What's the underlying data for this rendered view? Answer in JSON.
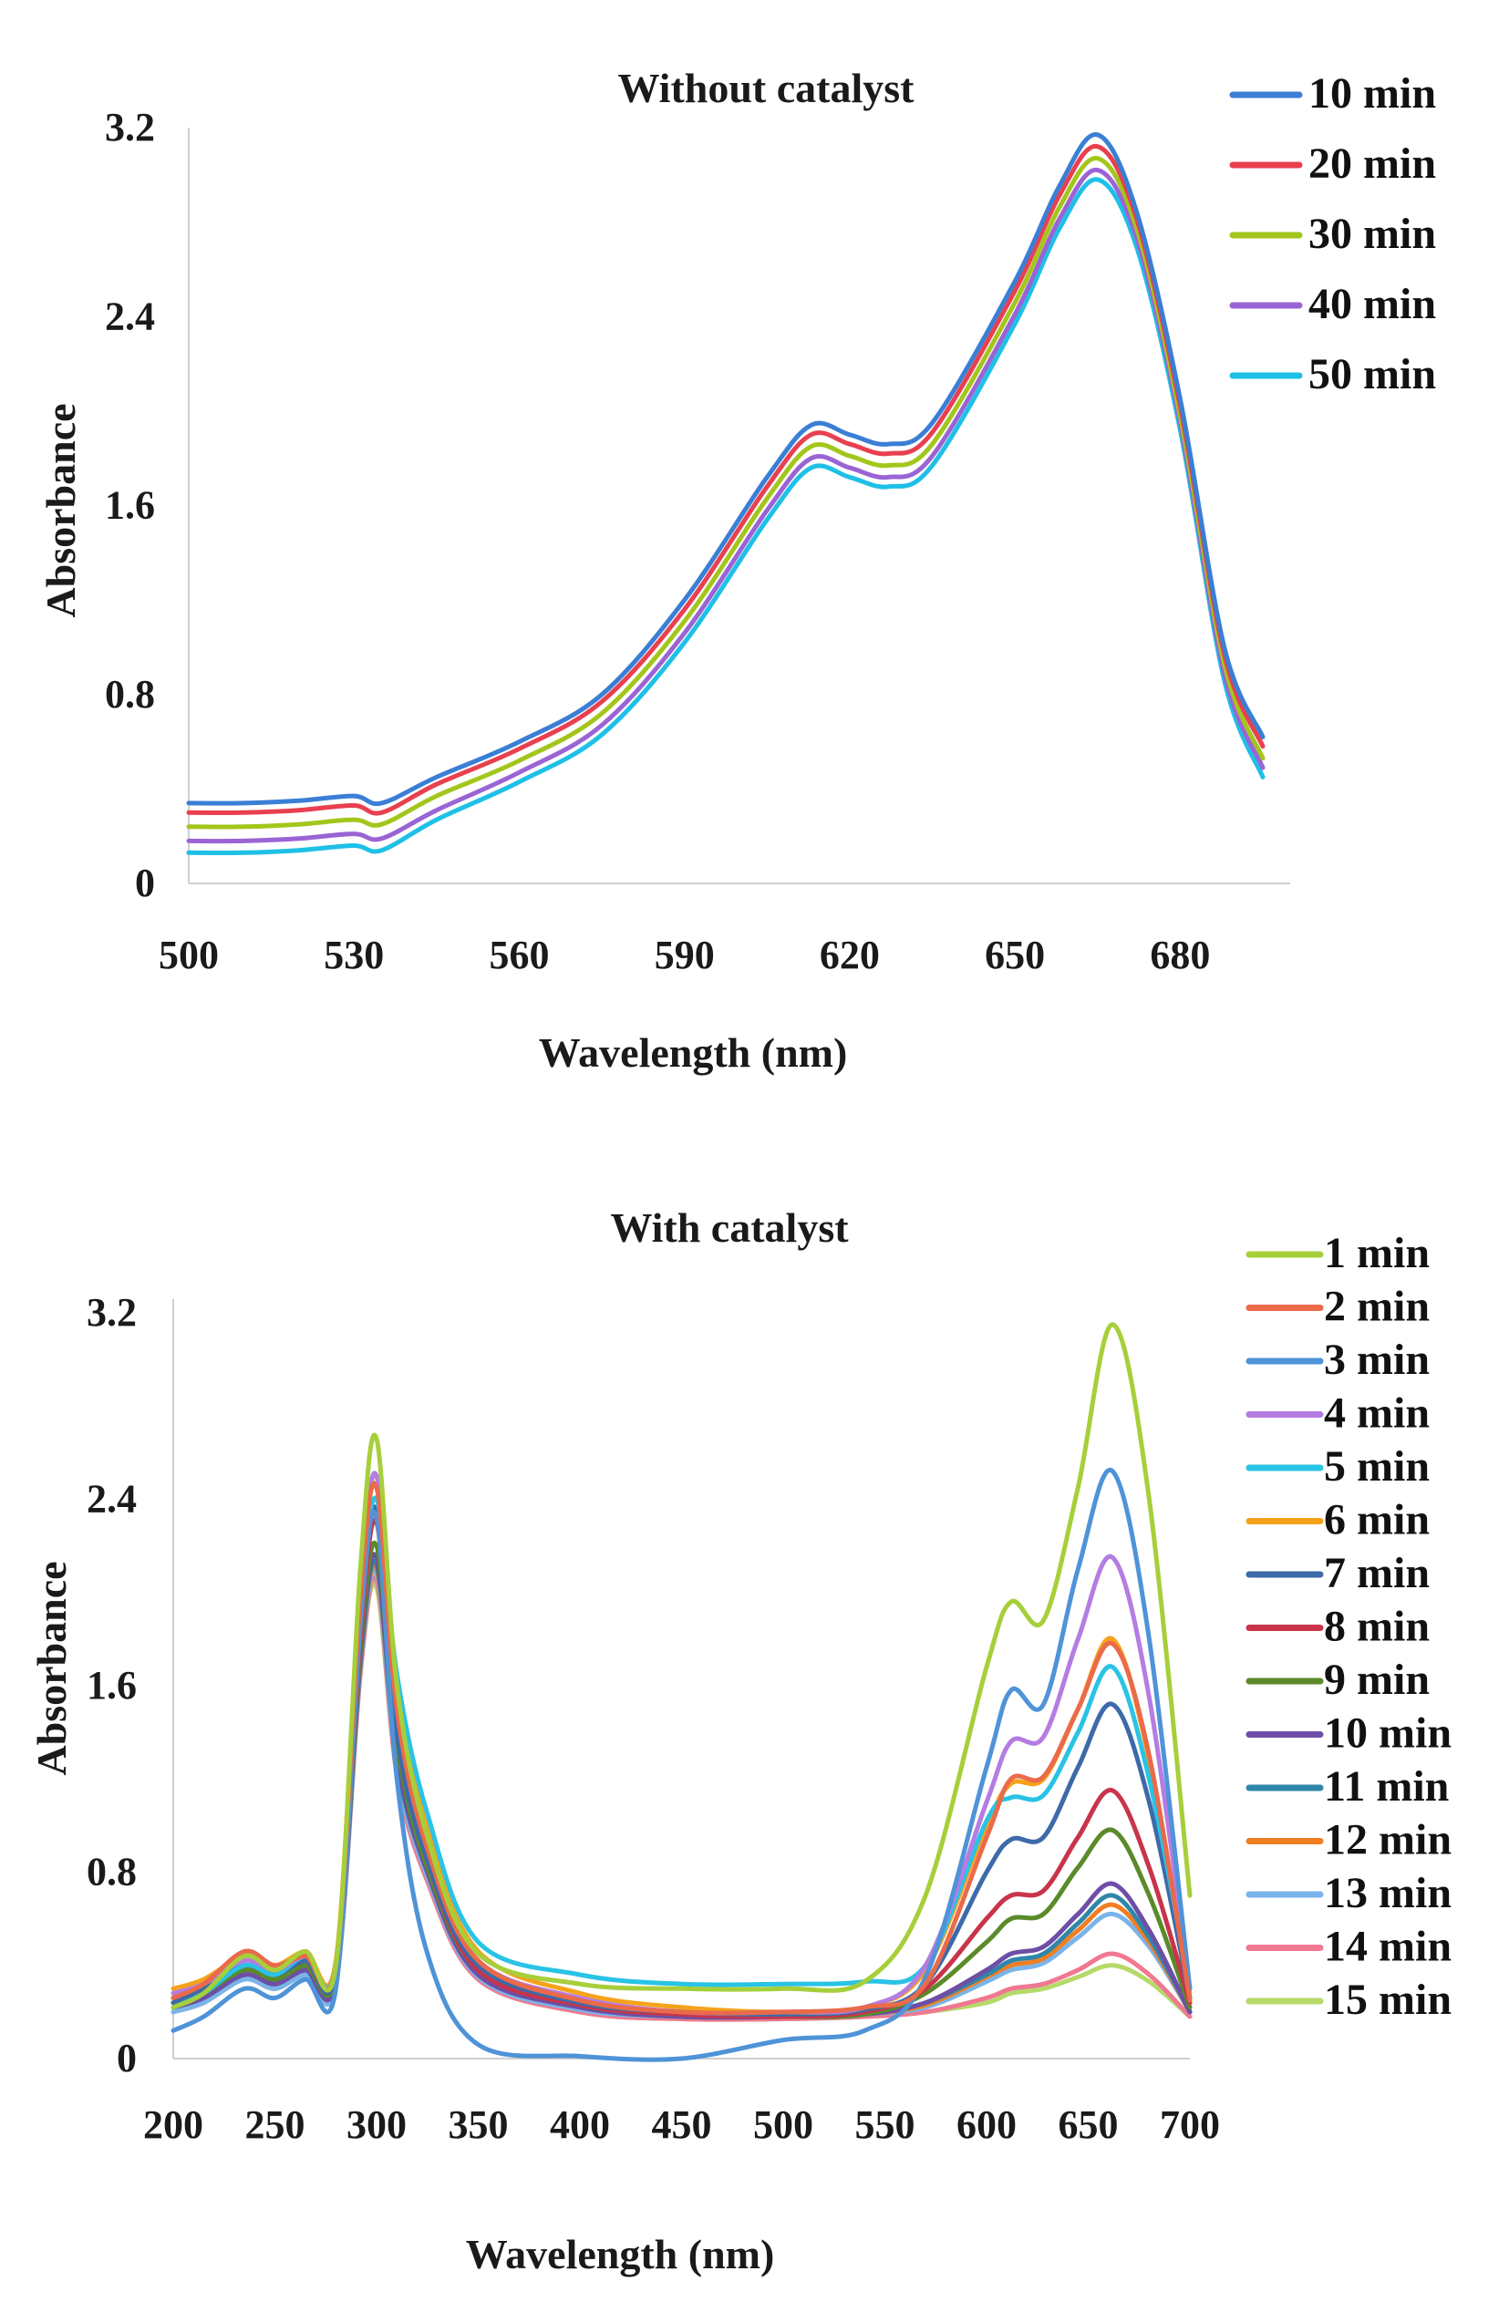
{
  "chart_data": [
    {
      "type": "line",
      "title": "Without catalyst",
      "xlabel": "Wavelength (nm)",
      "ylabel": "Absorbance",
      "xlim": [
        500,
        695
      ],
      "ylim": [
        0,
        3.2
      ],
      "xticks": [
        "500",
        "530",
        "560",
        "590",
        "620",
        "650",
        "680"
      ],
      "yticks": [
        "0",
        "0.8",
        "1.6",
        "2.4",
        "3.2"
      ],
      "legend_position": "top-right",
      "x": [
        500,
        510,
        520,
        530,
        535,
        545,
        560,
        575,
        590,
        605,
        613,
        620,
        627,
        635,
        650,
        658,
        665,
        672,
        680,
        688,
        695
      ],
      "series": [
        {
          "name": "10 min",
          "color": "#3a7fd5",
          "values": [
            0.34,
            0.34,
            0.35,
            0.37,
            0.34,
            0.45,
            0.6,
            0.8,
            1.2,
            1.72,
            1.94,
            1.9,
            1.86,
            1.95,
            2.55,
            2.95,
            3.17,
            2.85,
            2.05,
            1.0,
            0.62
          ]
        },
        {
          "name": "20 min",
          "color": "#e8404f",
          "values": [
            0.3,
            0.3,
            0.31,
            0.33,
            0.3,
            0.42,
            0.57,
            0.77,
            1.16,
            1.68,
            1.9,
            1.86,
            1.82,
            1.91,
            2.51,
            2.91,
            3.12,
            2.82,
            2.02,
            0.97,
            0.58
          ]
        },
        {
          "name": "30 min",
          "color": "#a3c61c",
          "values": [
            0.24,
            0.24,
            0.25,
            0.27,
            0.25,
            0.37,
            0.52,
            0.72,
            1.11,
            1.63,
            1.85,
            1.81,
            1.77,
            1.86,
            2.46,
            2.86,
            3.07,
            2.78,
            1.98,
            0.93,
            0.53
          ]
        },
        {
          "name": "40 min",
          "color": "#9a64d4",
          "values": [
            0.18,
            0.18,
            0.19,
            0.21,
            0.19,
            0.31,
            0.47,
            0.67,
            1.06,
            1.58,
            1.8,
            1.76,
            1.72,
            1.81,
            2.41,
            2.81,
            3.02,
            2.74,
            1.95,
            0.89,
            0.49
          ]
        },
        {
          "name": "50 min",
          "color": "#1ec0e6",
          "values": [
            0.13,
            0.13,
            0.14,
            0.16,
            0.14,
            0.27,
            0.43,
            0.63,
            1.02,
            1.54,
            1.76,
            1.72,
            1.68,
            1.77,
            2.37,
            2.77,
            2.98,
            2.7,
            1.92,
            0.86,
            0.45
          ]
        }
      ]
    },
    {
      "type": "line",
      "title": "With catalyst",
      "xlabel": "Wavelength (nm)",
      "ylabel": "Absorbance",
      "xlim": [
        200,
        700
      ],
      "ylim": [
        0,
        3.2
      ],
      "xticks": [
        "200",
        "250",
        "300",
        "350",
        "400",
        "450",
        "500",
        "550",
        "600",
        "650",
        "700"
      ],
      "yticks": [
        "0",
        "0.8",
        "1.6",
        "2.4",
        "3.2"
      ],
      "legend_position": "right",
      "x": [
        200,
        215,
        235,
        250,
        265,
        280,
        292,
        300,
        310,
        325,
        350,
        400,
        450,
        500,
        540,
        570,
        600,
        612,
        628,
        645,
        662,
        680,
        700
      ],
      "series": [
        {
          "name": "1 min",
          "color": "#a6cf3a",
          "values": [
            0.22,
            0.28,
            0.44,
            0.38,
            0.46,
            0.4,
            2.1,
            2.66,
            1.6,
            0.95,
            0.45,
            0.32,
            0.3,
            0.3,
            0.33,
            0.7,
            1.68,
            1.96,
            1.88,
            2.45,
            3.15,
            2.4,
            0.7
          ]
        },
        {
          "name": "2 min",
          "color": "#ea6a4a",
          "values": [
            0.26,
            0.32,
            0.46,
            0.4,
            0.44,
            0.4,
            1.98,
            2.45,
            1.5,
            0.9,
            0.42,
            0.25,
            0.2,
            0.2,
            0.22,
            0.32,
            0.95,
            1.2,
            1.21,
            1.5,
            1.78,
            1.3,
            0.25
          ]
        },
        {
          "name": "3 min",
          "color": "#4f93d8",
          "values": [
            0.12,
            0.18,
            0.3,
            0.26,
            0.34,
            0.3,
            1.85,
            2.32,
            1.2,
            0.45,
            0.06,
            0.01,
            0.0,
            0.08,
            0.12,
            0.35,
            1.25,
            1.58,
            1.52,
            2.1,
            2.52,
            1.8,
            0.3
          ]
        },
        {
          "name": "4 min",
          "color": "#b57ce2",
          "values": [
            0.28,
            0.32,
            0.42,
            0.38,
            0.44,
            0.4,
            1.95,
            2.5,
            1.5,
            0.9,
            0.42,
            0.26,
            0.2,
            0.2,
            0.22,
            0.4,
            1.1,
            1.36,
            1.38,
            1.8,
            2.15,
            1.55,
            0.3
          ]
        },
        {
          "name": "5 min",
          "color": "#29c3e5",
          "values": [
            0.22,
            0.28,
            0.4,
            0.36,
            0.44,
            0.4,
            1.9,
            2.4,
            1.65,
            1.05,
            0.5,
            0.36,
            0.32,
            0.32,
            0.33,
            0.4,
            1.02,
            1.12,
            1.13,
            1.4,
            1.68,
            1.2,
            0.3
          ]
        },
        {
          "name": "6 min",
          "color": "#f5a21b",
          "values": [
            0.3,
            0.34,
            0.44,
            0.4,
            0.46,
            0.42,
            2.05,
            2.45,
            1.6,
            0.98,
            0.46,
            0.28,
            0.22,
            0.2,
            0.22,
            0.38,
            1.0,
            1.18,
            1.2,
            1.5,
            1.8,
            1.28,
            0.28
          ]
        },
        {
          "name": "7 min",
          "color": "#3d6aa8",
          "values": [
            0.24,
            0.3,
            0.4,
            0.36,
            0.42,
            0.38,
            1.9,
            2.35,
            1.4,
            0.85,
            0.4,
            0.24,
            0.2,
            0.19,
            0.21,
            0.32,
            0.8,
            0.94,
            0.95,
            1.25,
            1.52,
            1.1,
            0.26
          ]
        },
        {
          "name": "8 min",
          "color": "#c8344a",
          "values": [
            0.26,
            0.3,
            0.4,
            0.36,
            0.42,
            0.38,
            1.8,
            2.3,
            1.4,
            0.85,
            0.38,
            0.23,
            0.19,
            0.18,
            0.2,
            0.3,
            0.6,
            0.7,
            0.72,
            0.95,
            1.15,
            0.82,
            0.24
          ]
        },
        {
          "name": "9 min",
          "color": "#5a8a2a",
          "values": [
            0.24,
            0.28,
            0.38,
            0.34,
            0.4,
            0.36,
            1.75,
            2.2,
            1.35,
            0.82,
            0.38,
            0.23,
            0.19,
            0.18,
            0.19,
            0.28,
            0.5,
            0.6,
            0.62,
            0.82,
            0.98,
            0.7,
            0.22
          ]
        },
        {
          "name": "10 min",
          "color": "#6e4ea6",
          "values": [
            0.22,
            0.26,
            0.36,
            0.32,
            0.38,
            0.34,
            1.72,
            2.15,
            1.3,
            0.8,
            0.36,
            0.22,
            0.18,
            0.18,
            0.19,
            0.24,
            0.38,
            0.45,
            0.48,
            0.62,
            0.75,
            0.55,
            0.2
          ]
        },
        {
          "name": "11 min",
          "color": "#2f86a8",
          "values": [
            0.22,
            0.26,
            0.36,
            0.32,
            0.38,
            0.34,
            1.7,
            2.12,
            1.28,
            0.8,
            0.36,
            0.22,
            0.18,
            0.18,
            0.19,
            0.24,
            0.36,
            0.42,
            0.45,
            0.58,
            0.7,
            0.52,
            0.2
          ]
        },
        {
          "name": "12 min",
          "color": "#ef7f22",
          "values": [
            0.24,
            0.28,
            0.38,
            0.34,
            0.4,
            0.36,
            1.7,
            2.1,
            1.28,
            0.8,
            0.36,
            0.22,
            0.18,
            0.18,
            0.19,
            0.23,
            0.35,
            0.4,
            0.43,
            0.55,
            0.66,
            0.5,
            0.2
          ]
        },
        {
          "name": "13 min",
          "color": "#7ab4ea",
          "values": [
            0.2,
            0.24,
            0.34,
            0.3,
            0.36,
            0.32,
            1.68,
            2.08,
            1.25,
            0.78,
            0.35,
            0.21,
            0.18,
            0.18,
            0.19,
            0.22,
            0.33,
            0.38,
            0.41,
            0.52,
            0.62,
            0.48,
            0.2
          ]
        },
        {
          "name": "14 min",
          "color": "#f07891",
          "values": [
            0.2,
            0.24,
            0.34,
            0.3,
            0.36,
            0.32,
            1.65,
            2.05,
            1.22,
            0.76,
            0.34,
            0.2,
            0.17,
            0.17,
            0.18,
            0.2,
            0.26,
            0.3,
            0.32,
            0.38,
            0.45,
            0.36,
            0.18
          ]
        },
        {
          "name": "15 min",
          "color": "#b6d96a",
          "values": [
            0.2,
            0.24,
            0.34,
            0.3,
            0.36,
            0.32,
            1.65,
            2.02,
            1.22,
            0.76,
            0.34,
            0.2,
            0.17,
            0.17,
            0.18,
            0.2,
            0.24,
            0.28,
            0.3,
            0.35,
            0.4,
            0.33,
            0.18
          ]
        }
      ]
    }
  ]
}
